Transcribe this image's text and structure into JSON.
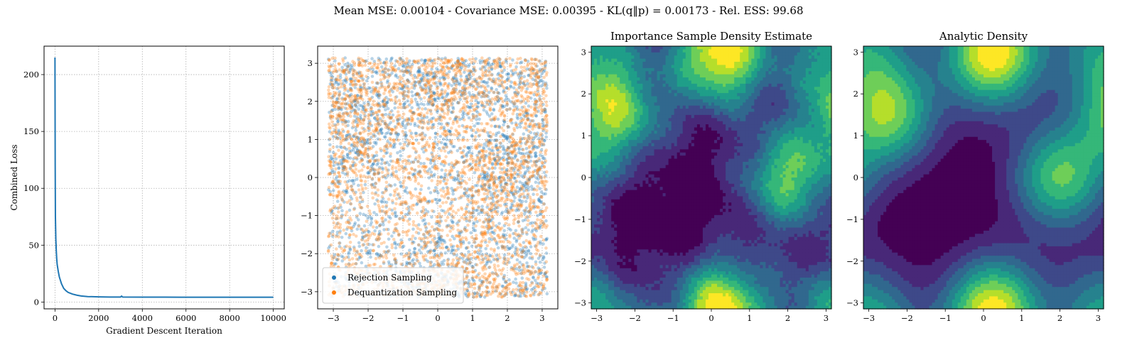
{
  "figure": {
    "suptitle": "Mean MSE: 0.00104 - Covariance MSE: 0.00395 - KL(q‖p) = 0.00173 - Rel. ESS: 99.68"
  },
  "colors": {
    "loss_line": "#1f77b4",
    "rejection": "#1f77b4",
    "dequantization": "#ff7f0e",
    "grid": "#b0b0b0",
    "viridis": [
      "#440154",
      "#482878",
      "#3e4989",
      "#31688e",
      "#26828e",
      "#1f9e89",
      "#35b779",
      "#6ece58",
      "#b5de2b",
      "#fde725"
    ]
  },
  "chart_data": [
    {
      "type": "line",
      "title": "",
      "xlabel": "Gradient Descent Iteration",
      "ylabel": "Combined Loss",
      "xlim": [
        -500,
        10500
      ],
      "ylim": [
        -6,
        225
      ],
      "xticks": [
        0,
        2000,
        4000,
        6000,
        8000,
        10000
      ],
      "xtick_labels": [
        "0",
        "2000",
        "4000",
        "6000",
        "8000",
        "10000"
      ],
      "yticks": [
        0,
        50,
        100,
        150,
        200
      ],
      "ytick_labels": [
        "0",
        "50",
        "100",
        "150",
        "200"
      ],
      "grid": true,
      "series": [
        {
          "x": [
            0,
            10,
            20,
            40,
            60,
            80,
            100,
            150,
            200,
            300,
            400,
            500,
            600,
            800,
            1000,
            1200,
            1500,
            2000,
            2500,
            3000,
            3050,
            3100,
            4000,
            5000,
            6000,
            7000,
            8000,
            9000,
            10000
          ],
          "values": [
            215,
            120,
            75,
            55,
            45,
            38,
            33,
            27,
            22,
            16,
            12,
            10,
            8.5,
            7,
            6,
            5.3,
            4.8,
            4.5,
            4.4,
            4.4,
            5.2,
            4.4,
            4.3,
            4.3,
            4.2,
            4.2,
            4.2,
            4.2,
            4.2
          ]
        }
      ]
    },
    {
      "type": "scatter",
      "title": "",
      "xlim": [
        -3.45,
        3.45
      ],
      "ylim": [
        -3.45,
        3.45
      ],
      "xticks": [
        -3,
        -2,
        -1,
        0,
        1,
        2,
        3
      ],
      "xtick_labels": [
        "−3",
        "−2",
        "−1",
        "0",
        "1",
        "2",
        "3"
      ],
      "yticks": [
        -3,
        -2,
        -1,
        0,
        1,
        2,
        3
      ],
      "ytick_labels": [
        "−3",
        "−2",
        "−1",
        "0",
        "1",
        "2",
        "3"
      ],
      "grid": true,
      "legend_placement": "lower-left",
      "series": [
        {
          "name": "Rejection Sampling",
          "domain": [
            -3.14159,
            3.14159
          ]
        },
        {
          "name": "Dequantization Sampling",
          "domain": [
            -3.14159,
            3.14159
          ]
        }
      ]
    },
    {
      "type": "heatmap",
      "title": "Importance Sample Density Estimate",
      "xlim": [
        -3.14159,
        3.14159
      ],
      "ylim": [
        -3.14159,
        3.14159
      ],
      "xticks": [
        -3,
        -2,
        -1,
        0,
        1,
        2,
        3
      ],
      "xtick_labels": [
        "−3",
        "−2",
        "−1",
        "0",
        "1",
        "2",
        "3"
      ],
      "yticks": [
        -3,
        -2,
        -1,
        0,
        1,
        2,
        3
      ],
      "ytick_labels": [
        "−3",
        "−2",
        "−1",
        "0",
        "1",
        "2",
        "3"
      ],
      "levels": 10,
      "noisy": true
    },
    {
      "type": "heatmap",
      "title": "Analytic Density",
      "xlim": [
        -3.14159,
        3.14159
      ],
      "ylim": [
        -3.14159,
        3.14159
      ],
      "xticks": [
        -3,
        -2,
        -1,
        0,
        1,
        2,
        3
      ],
      "xtick_labels": [
        "−3",
        "−2",
        "−1",
        "0",
        "1",
        "2",
        "3"
      ],
      "yticks": [
        -3,
        -2,
        -1,
        0,
        1,
        2,
        3
      ],
      "ytick_labels": [
        "−3",
        "−2",
        "−1",
        "0",
        "1",
        "2",
        "3"
      ],
      "levels": 10,
      "noisy": false
    }
  ]
}
